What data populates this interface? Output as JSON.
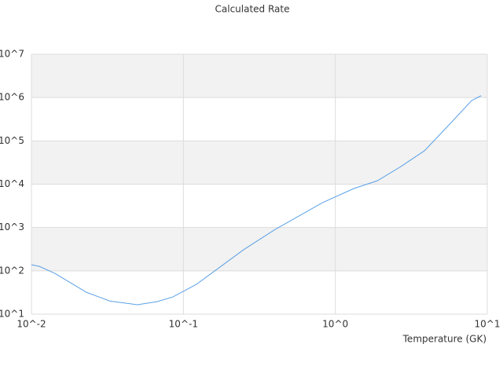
{
  "chart_data": {
    "type": "line",
    "title": "Calculated Rate",
    "x_label": "Temperature (GK)",
    "xscale": "log",
    "yscale": "log",
    "xlim": [
      0.01,
      10
    ],
    "ylim": [
      10,
      10000000
    ],
    "xticks": [
      {
        "value": 0.01,
        "label": "10^-2"
      },
      {
        "value": 0.1,
        "label": "10^-1"
      },
      {
        "value": 1,
        "label": "10^0"
      },
      {
        "value": 10,
        "label": "10^1"
      }
    ],
    "yticks": [
      {
        "value": 10,
        "label": "10^1"
      },
      {
        "value": 100,
        "label": "10^2"
      },
      {
        "value": 1000,
        "label": "10^3"
      },
      {
        "value": 10000,
        "label": "10^4"
      },
      {
        "value": 100000,
        "label": "10^5"
      },
      {
        "value": 1000000,
        "label": "10^6"
      },
      {
        "value": 10000000,
        "label": "10^7"
      }
    ],
    "grid": true,
    "bands": true,
    "band_color": "#f2f2f2",
    "x": [
      0.01,
      0.01127,
      0.0143,
      0.0181,
      0.023,
      0.0329,
      0.0499,
      0.0673,
      0.0853,
      0.122,
      0.174,
      0.249,
      0.402,
      0.574,
      0.82,
      1.32,
      1.89,
      2.7,
      3.86,
      5.52,
      7.89,
      9.1
    ],
    "series": [
      {
        "color": "#5aa0e6",
        "values": [
          138,
          127,
          87,
          53,
          32,
          20,
          16.5,
          19.5,
          25,
          49,
          122,
          307,
          905,
          1830,
          3720,
          7900,
          12000,
          25500,
          59000,
          222000,
          850000,
          1100000
        ]
      }
    ]
  }
}
